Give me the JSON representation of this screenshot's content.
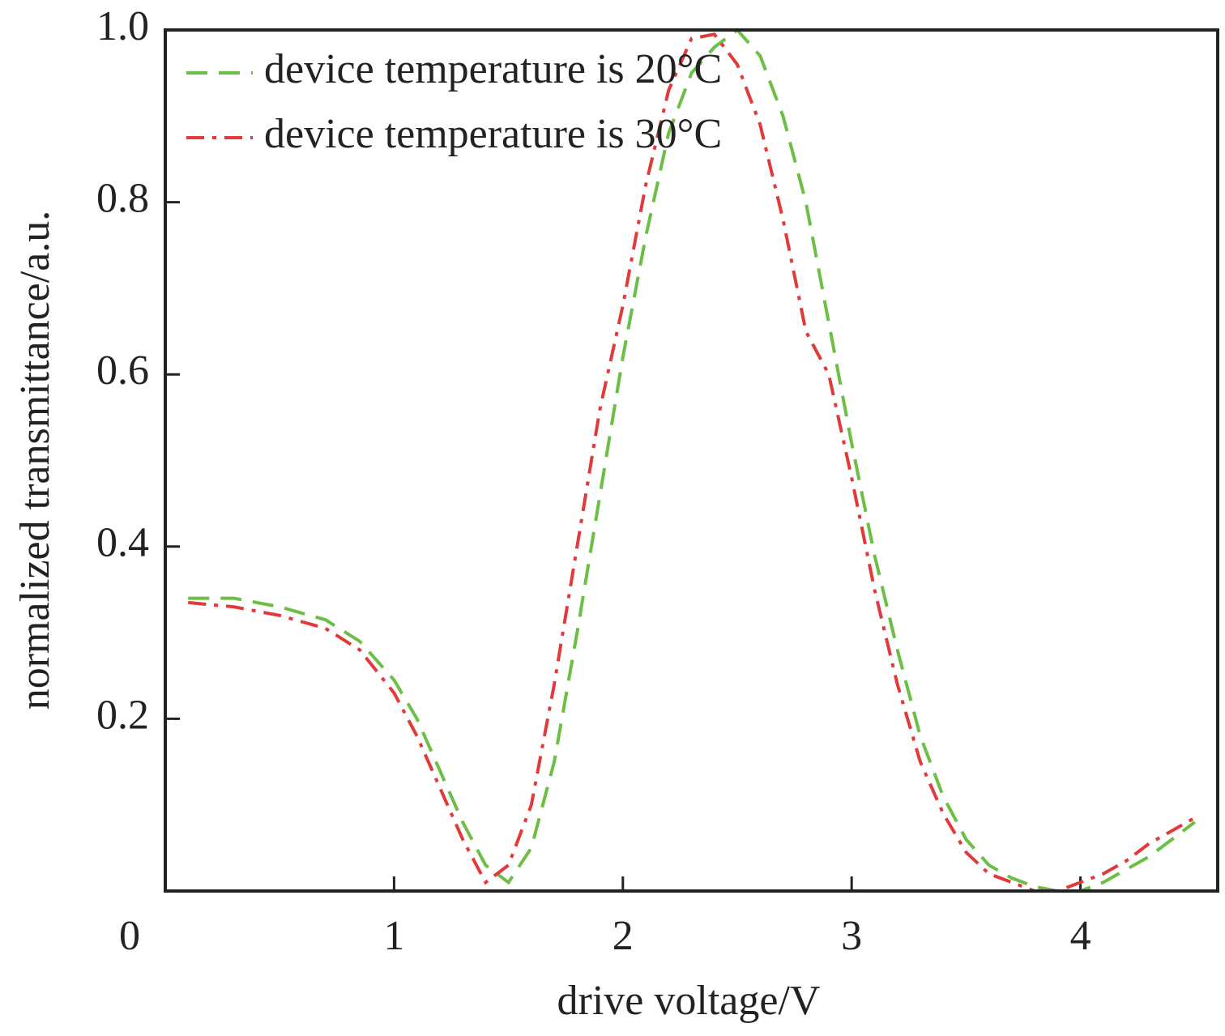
{
  "chart_data": {
    "type": "line",
    "xlabel": "drive voltage/V",
    "ylabel": "normalized transmittance/a.u.",
    "x": [
      0.1,
      0.3,
      0.5,
      0.7,
      0.85,
      1.0,
      1.1,
      1.2,
      1.3,
      1.4,
      1.5,
      1.6,
      1.7,
      1.8,
      1.9,
      2.0,
      2.1,
      2.2,
      2.3,
      2.4,
      2.5,
      2.6,
      2.7,
      2.8,
      2.9,
      3.0,
      3.1,
      3.2,
      3.3,
      3.4,
      3.5,
      3.6,
      3.7,
      3.8,
      3.9,
      4.0,
      4.1,
      4.2,
      4.3,
      4.4,
      4.5
    ],
    "series": [
      {
        "name": "device temperature is 20°C",
        "color": "#6cbf45",
        "linestyle": "dashed",
        "values": [
          0.34,
          0.34,
          0.33,
          0.315,
          0.29,
          0.245,
          0.2,
          0.14,
          0.08,
          0.03,
          0.01,
          0.05,
          0.15,
          0.3,
          0.46,
          0.62,
          0.76,
          0.88,
          0.95,
          0.98,
          1.0,
          0.97,
          0.9,
          0.8,
          0.66,
          0.52,
          0.39,
          0.28,
          0.18,
          0.11,
          0.06,
          0.03,
          0.015,
          0.005,
          0.0,
          0.0,
          0.01,
          0.025,
          0.04,
          0.06,
          0.08
        ]
      },
      {
        "name": "device temperature is 30°C",
        "color": "#e23a3a",
        "linestyle": "dashdot",
        "values": [
          0.335,
          0.33,
          0.32,
          0.305,
          0.28,
          0.23,
          0.18,
          0.12,
          0.06,
          0.01,
          0.03,
          0.1,
          0.24,
          0.4,
          0.56,
          0.68,
          0.82,
          0.93,
          0.99,
          0.995,
          0.96,
          0.89,
          0.78,
          0.65,
          0.6,
          0.48,
          0.35,
          0.24,
          0.15,
          0.09,
          0.045,
          0.02,
          0.01,
          0.0,
          0.0,
          0.01,
          0.02,
          0.035,
          0.055,
          0.07,
          0.085
        ]
      }
    ],
    "xlim": [
      0,
      4.6
    ],
    "xticks": [
      0,
      1,
      2,
      3,
      4
    ],
    "ylim": [
      0,
      1
    ],
    "yticks": [
      0.2,
      0.4,
      0.6,
      0.8,
      {
        "value": 1,
        "label": "1.0"
      }
    ],
    "legend": "upper left",
    "grid": false
  }
}
